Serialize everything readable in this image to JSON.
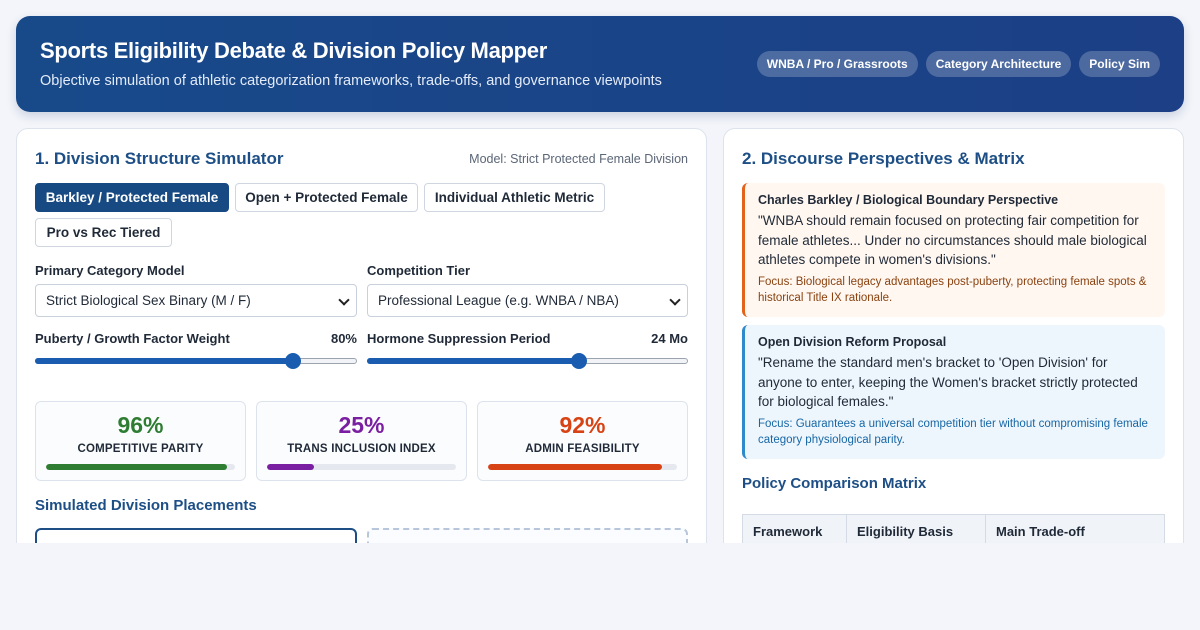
{
  "header": {
    "title": "Sports Eligibility Debate & Division Policy Mapper",
    "subtitle": "Objective simulation of athletic categorization frameworks, trade-offs, and governance viewpoints",
    "tags": [
      "WNBA / Pro / Grassroots",
      "Category Architecture",
      "Policy Sim"
    ]
  },
  "simulator": {
    "title": "1. Division Structure Simulator",
    "model_label": "Model: Strict Protected Female Division",
    "presets": [
      {
        "label": "Barkley / Protected Female",
        "active": true
      },
      {
        "label": "Open + Protected Female",
        "active": false
      },
      {
        "label": "Individual Athletic Metric",
        "active": false
      },
      {
        "label": "Pro vs Rec Tiered",
        "active": false
      }
    ],
    "category_model": {
      "label": "Primary Category Model",
      "value": "Strict Biological Sex Binary (M / F)"
    },
    "competition_tier": {
      "label": "Competition Tier",
      "value": "Professional League (e.g. WNBA / NBA)"
    },
    "puberty_weight": {
      "label": "Puberty / Growth Factor Weight",
      "value_text": "80%",
      "fraction": 0.8
    },
    "hormone_period": {
      "label": "Hormone Suppression Period",
      "value_text": "24 Mo",
      "fraction": 0.66
    },
    "metrics": [
      {
        "value": "96%",
        "label": "COMPETITIVE PARITY",
        "fraction": 0.96,
        "color": "#2e7d32"
      },
      {
        "value": "25%",
        "label": "TRANS INCLUSION INDEX",
        "fraction": 0.25,
        "color": "#7b1fa2"
      },
      {
        "value": "92%",
        "label": "ADMIN FEASIBILITY",
        "fraction": 0.92,
        "color": "#d84315"
      }
    ],
    "placements_title": "Simulated Division Placements"
  },
  "perspectives": {
    "title": "2. Discourse Perspectives & Matrix",
    "quotes": [
      {
        "heading": "Charles Barkley / Biological Boundary Perspective",
        "text": "\"WNBA should remain focused on protecting fair competition for female athletes... Under no circumstances should male biological athletes compete in women's divisions.\"",
        "focus": "Focus: Biological legacy advantages post-puberty, protecting female spots & historical Title IX rationale."
      },
      {
        "heading": "Open Division Reform Proposal",
        "text": "\"Rename the standard men's bracket to 'Open Division' for anyone to enter, keeping the Women's bracket strictly protected for biological females.\"",
        "focus": "Focus: Guarantees a universal competition tier without compromising female category physiological parity."
      }
    ],
    "matrix_title": "Policy Comparison Matrix",
    "matrix_headers": [
      "Framework",
      "Eligibility Basis",
      "Main Trade-off"
    ]
  }
}
